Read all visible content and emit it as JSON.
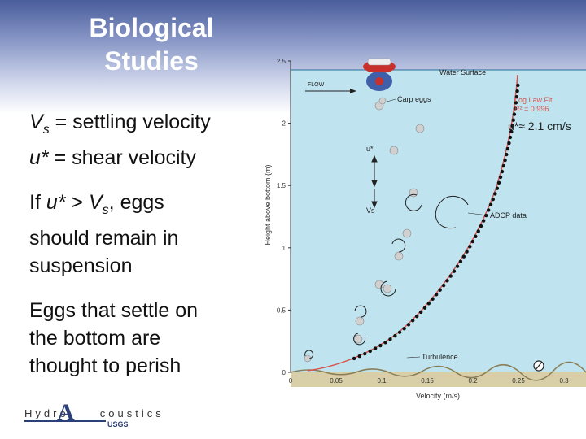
{
  "title_line1": "Biological",
  "title_line2": "Studies",
  "defs": {
    "vs_sym": "V",
    "vs_sub": "s",
    "vs_def": " = settling velocity",
    "us_sym": "u*",
    "us_def": " = shear velocity"
  },
  "condition": {
    "pre": "If ",
    "u": "u*",
    "gt": " > ",
    "v": "V",
    "sub": "s",
    "post": ", eggs",
    "line2": "should remain in",
    "line3": "suspension"
  },
  "settle": {
    "line1": "Eggs that settle on",
    "line2": "the bottom are",
    "line3": "thought to perish"
  },
  "annotation": "u*≈ 2.1 cm/s",
  "logo": {
    "hydro": "Hydro",
    "a": "A",
    "coustics": "coustics",
    "usgs": "USGS"
  },
  "diagram": {
    "water_surface": "Water Surface",
    "flow": "FLOW",
    "carp_eggs": "Carp eggs",
    "log_law_fit": "Log Law Fit",
    "r2": "R² = 0.996",
    "adcp": "ADCP data",
    "turbulence": "Turbulence",
    "u_star": "u*",
    "v_s": "Vs",
    "ylabel": "Height above bottom (m)",
    "xlabel": "Velocity (m/s)",
    "y_ticks": [
      "0",
      "0.5",
      "1",
      "1.5",
      "2",
      "2.5"
    ],
    "x_ticks": [
      "0",
      "0.05",
      "0.1",
      "0.15",
      "0.2",
      "0.25",
      "0.3"
    ],
    "xlim": [
      0,
      0.3
    ],
    "ylim": [
      0,
      2.5
    ],
    "water_color": "#bfe3ef"
  }
}
